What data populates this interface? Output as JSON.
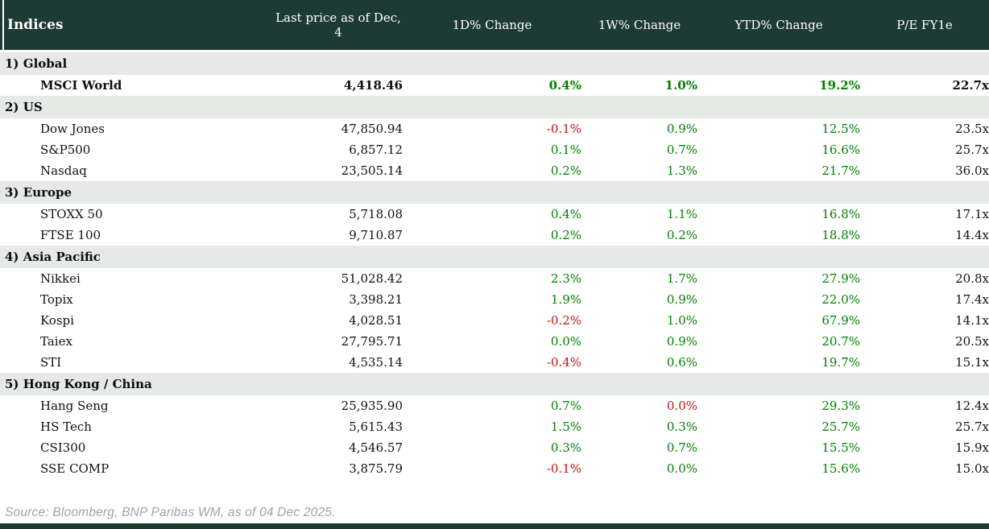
{
  "table": {
    "title": "Indices",
    "columns": [
      "Last price as of Dec, 4",
      "1D% Change",
      "1W% Change",
      "YTD% Change",
      "P/E FY1e"
    ],
    "sections": [
      {
        "label": "1) Global",
        "rows": [
          {
            "name": "MSCI World",
            "bold": true,
            "last_price": "4,418.46",
            "chg_1d": "0.4%",
            "chg_1d_color": "pos",
            "chg_1w": "1.0%",
            "chg_1w_color": "pos",
            "chg_ytd": "19.2%",
            "chg_ytd_color": "pos",
            "pe_fy1e": "22.7x"
          }
        ]
      },
      {
        "label": "2) US",
        "rows": [
          {
            "name": "Dow Jones",
            "bold": false,
            "last_price": "47,850.94",
            "chg_1d": "-0.1%",
            "chg_1d_color": "neg",
            "chg_1w": "0.9%",
            "chg_1w_color": "pos",
            "chg_ytd": "12.5%",
            "chg_ytd_color": "pos",
            "pe_fy1e": "23.5x"
          },
          {
            "name": "S&P500",
            "bold": false,
            "last_price": "6,857.12",
            "chg_1d": "0.1%",
            "chg_1d_color": "pos",
            "chg_1w": "0.7%",
            "chg_1w_color": "pos",
            "chg_ytd": "16.6%",
            "chg_ytd_color": "pos",
            "pe_fy1e": "25.7x"
          },
          {
            "name": "Nasdaq",
            "bold": false,
            "last_price": "23,505.14",
            "chg_1d": "0.2%",
            "chg_1d_color": "pos",
            "chg_1w": "1.3%",
            "chg_1w_color": "pos",
            "chg_ytd": "21.7%",
            "chg_ytd_color": "pos",
            "pe_fy1e": "36.0x"
          }
        ]
      },
      {
        "label": "3) Europe",
        "rows": [
          {
            "name": "STOXX 50",
            "bold": false,
            "last_price": "5,718.08",
            "chg_1d": "0.4%",
            "chg_1d_color": "pos",
            "chg_1w": "1.1%",
            "chg_1w_color": "pos",
            "chg_ytd": "16.8%",
            "chg_ytd_color": "pos",
            "pe_fy1e": "17.1x"
          },
          {
            "name": "FTSE 100",
            "bold": false,
            "last_price": "9,710.87",
            "chg_1d": "0.2%",
            "chg_1d_color": "pos",
            "chg_1w": "0.2%",
            "chg_1w_color": "pos",
            "chg_ytd": "18.8%",
            "chg_ytd_color": "pos",
            "pe_fy1e": "14.4x"
          }
        ]
      },
      {
        "label": "4) Asia Pacific",
        "rows": [
          {
            "name": "Nikkei",
            "bold": false,
            "last_price": "51,028.42",
            "chg_1d": "2.3%",
            "chg_1d_color": "pos",
            "chg_1w": "1.7%",
            "chg_1w_color": "pos",
            "chg_ytd": "27.9%",
            "chg_ytd_color": "pos",
            "pe_fy1e": "20.8x"
          },
          {
            "name": "Topix",
            "bold": false,
            "last_price": "3,398.21",
            "chg_1d": "1.9%",
            "chg_1d_color": "pos",
            "chg_1w": "0.9%",
            "chg_1w_color": "pos",
            "chg_ytd": "22.0%",
            "chg_ytd_color": "pos",
            "pe_fy1e": "17.4x"
          },
          {
            "name": "Kospi",
            "bold": false,
            "last_price": "4,028.51",
            "chg_1d": "-0.2%",
            "chg_1d_color": "neg",
            "chg_1w": "1.0%",
            "chg_1w_color": "pos",
            "chg_ytd": "67.9%",
            "chg_ytd_color": "pos",
            "pe_fy1e": "14.1x"
          },
          {
            "name": "Taiex",
            "bold": false,
            "last_price": "27,795.71",
            "chg_1d": "0.0%",
            "chg_1d_color": "pos",
            "chg_1w": "0.9%",
            "chg_1w_color": "pos",
            "chg_ytd": "20.7%",
            "chg_ytd_color": "pos",
            "pe_fy1e": "20.5x"
          },
          {
            "name": "STI",
            "bold": false,
            "last_price": "4,535.14",
            "chg_1d": "-0.4%",
            "chg_1d_color": "neg",
            "chg_1w": "0.6%",
            "chg_1w_color": "pos",
            "chg_ytd": "19.7%",
            "chg_ytd_color": "pos",
            "pe_fy1e": "15.1x"
          }
        ]
      },
      {
        "label": "5) Hong Kong / China",
        "rows": [
          {
            "name": "Hang Seng",
            "bold": false,
            "last_price": "25,935.90",
            "chg_1d": "0.7%",
            "chg_1d_color": "pos",
            "chg_1w": "0.0%",
            "chg_1w_color": "neg",
            "chg_ytd": "29.3%",
            "chg_ytd_color": "pos",
            "pe_fy1e": "12.4x"
          },
          {
            "name": "HS Tech",
            "bold": false,
            "last_price": "5,615.43",
            "chg_1d": "1.5%",
            "chg_1d_color": "pos",
            "chg_1w": "0.3%",
            "chg_1w_color": "pos",
            "chg_ytd": "25.7%",
            "chg_ytd_color": "pos",
            "pe_fy1e": "25.7x"
          },
          {
            "name": "CSI300",
            "bold": false,
            "last_price": "4,546.57",
            "chg_1d": "0.3%",
            "chg_1d_color": "pos",
            "chg_1w": "0.7%",
            "chg_1w_color": "pos",
            "chg_ytd": "15.5%",
            "chg_ytd_color": "pos",
            "pe_fy1e": "15.9x"
          },
          {
            "name": "SSE COMP",
            "bold": false,
            "last_price": "3,875.79",
            "chg_1d": "-0.1%",
            "chg_1d_color": "neg",
            "chg_1w": "0.0%",
            "chg_1w_color": "pos",
            "chg_ytd": "15.6%",
            "chg_ytd_color": "pos",
            "pe_fy1e": "15.0x"
          }
        ]
      }
    ]
  },
  "footer": {
    "source": "Source: Bloomberg, BNP Paribas WM, as of 04 Dec 2025."
  },
  "colors": {
    "header_bg": "#1d3a33",
    "section_bg": "#e5eae6",
    "positive": "#008000",
    "negative": "#c01515"
  }
}
